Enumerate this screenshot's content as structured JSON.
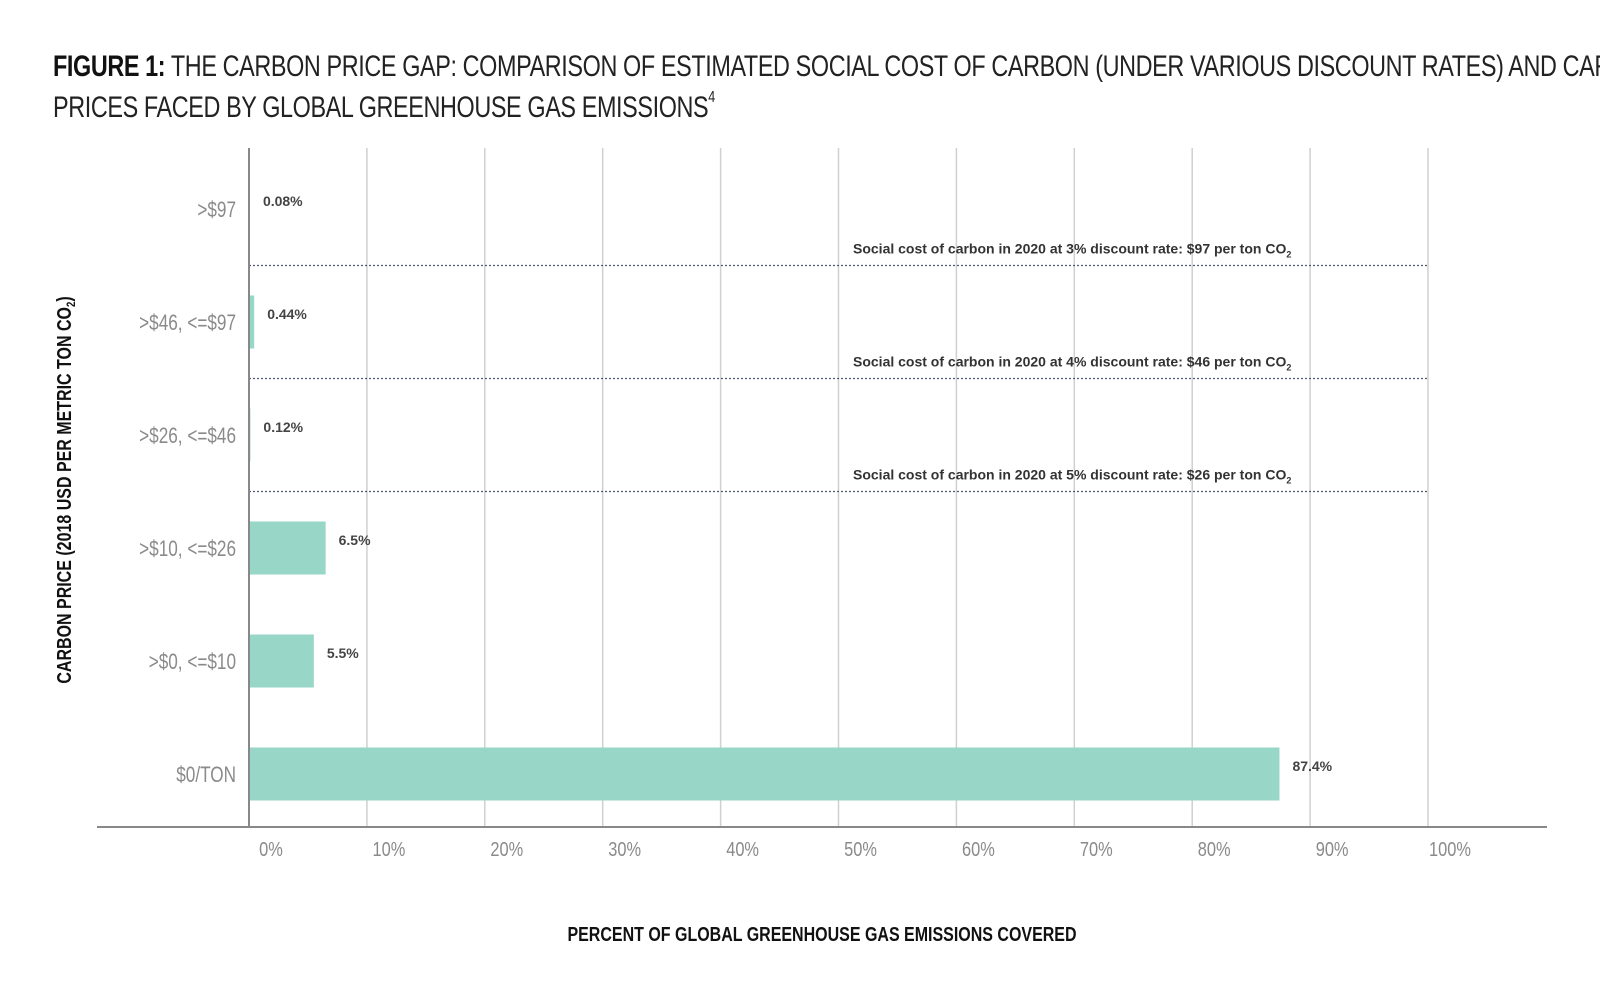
{
  "figure": {
    "label": "FIGURE 1:",
    "title": "THE CARBON PRICE GAP: COMPARISON OF ESTIMATED SOCIAL COST OF CARBON (UNDER VARIOUS DISCOUNT RATES) AND CARBON",
    "title_line2": "PRICES FACED BY GLOBAL GREENHOUSE GAS EMISSIONS",
    "footnote_mark": "4"
  },
  "colors": {
    "bar": "#98d6c8",
    "grid": "#d0d0d0",
    "axis": "#888888",
    "dotted": "#4a5a70"
  },
  "chart_data": {
    "type": "bar",
    "orientation": "horizontal",
    "categories": [
      ">$97",
      ">$46, <=$97",
      ">$26, <=$46",
      ">$10, <=$26",
      ">$0, <=$10",
      "$0/TON"
    ],
    "values": [
      0.08,
      0.44,
      0.12,
      6.5,
      5.5,
      87.4
    ],
    "data_labels": [
      "0.08%",
      "0.44%",
      "0.12%",
      "6.5%",
      "5.5%",
      "87.4%"
    ],
    "xlabel": "PERCENT OF GLOBAL GREENHOUSE GAS EMISSIONS COVERED",
    "ylabel": "CARBON PRICE (2018 USD PER METRIC TON CO",
    "ylabel_sub": "2",
    "ylabel_end": ")",
    "xlim": [
      0,
      100
    ],
    "xticks": [
      "0%",
      "10%",
      "20%",
      "30%",
      "40%",
      "50%",
      "60%",
      "70%",
      "80%",
      "90%",
      "100%"
    ],
    "grid": true,
    "thresholds": [
      {
        "text": "Social cost of carbon in 2020 at 3% discount rate: $97 per ton CO",
        "sub": "2"
      },
      {
        "text": "Social cost of carbon in 2020 at 4% discount rate: $46 per ton CO",
        "sub": "2"
      },
      {
        "text": "Social cost of carbon in 2020 at 5% discount rate: $26 per ton CO",
        "sub": "2"
      }
    ]
  }
}
